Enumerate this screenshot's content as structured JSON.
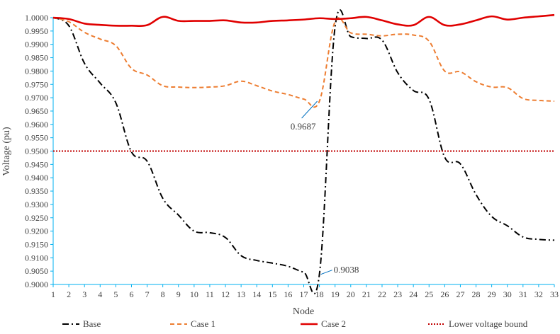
{
  "chart_data": {
    "type": "line",
    "xlabel": "Node",
    "ylabel": "Voltage (pu)",
    "x": [
      1,
      2,
      3,
      4,
      5,
      6,
      7,
      8,
      9,
      10,
      11,
      12,
      13,
      14,
      15,
      16,
      17,
      18,
      19,
      20,
      21,
      22,
      23,
      24,
      25,
      26,
      27,
      28,
      29,
      30,
      31,
      32,
      33
    ],
    "xlim": [
      1,
      33
    ],
    "ylim": [
      0.9,
      1.0
    ],
    "y_ticks": [
      "0.9000",
      "0.9050",
      "0.9100",
      "0.9150",
      "0.9200",
      "0.9250",
      "0.9300",
      "0.9350",
      "0.9400",
      "0.9450",
      "0.9500",
      "0.9550",
      "0.9600",
      "0.9650",
      "0.9700",
      "0.9750",
      "0.9800",
      "0.9850",
      "0.9900",
      "0.9950",
      "1.0000"
    ],
    "x_ticks": [
      "1",
      "2",
      "3",
      "4",
      "5",
      "6",
      "7",
      "8",
      "9",
      "10",
      "11",
      "12",
      "13",
      "14",
      "15",
      "16",
      "17",
      "18",
      "19",
      "20",
      "21",
      "22",
      "23",
      "24",
      "25",
      "26",
      "27",
      "28",
      "29",
      "30",
      "31",
      "32",
      "33"
    ],
    "grid": false,
    "legend_position": "bottom",
    "colors": {
      "axis": "#00b0f0",
      "base": "#000000",
      "case1": "#ed7d31",
      "case2": "#e00000",
      "bound": "#c00000",
      "callout": "#0070c0"
    },
    "series": [
      {
        "name": "Base",
        "style": "dash-dot",
        "color": "#000000",
        "values": [
          1.0,
          0.997,
          0.9829,
          0.9755,
          0.9681,
          0.9497,
          0.9462,
          0.9323,
          0.926,
          0.92,
          0.9194,
          0.9176,
          0.9108,
          0.909,
          0.908,
          0.9068,
          0.9046,
          0.9038,
          0.9965,
          0.9929,
          0.9922,
          0.9916,
          0.9794,
          0.9727,
          0.9694,
          0.9477,
          0.9452,
          0.9337,
          0.9255,
          0.922,
          0.9178,
          0.9169,
          0.9166
        ]
      },
      {
        "name": "Case 1",
        "style": "dashed",
        "color": "#ed7d31",
        "values": [
          1.0,
          0.9985,
          0.9945,
          0.992,
          0.9895,
          0.981,
          0.9785,
          0.9745,
          0.974,
          0.9738,
          0.974,
          0.9745,
          0.9762,
          0.9745,
          0.9725,
          0.9712,
          0.9695,
          0.9687,
          0.9985,
          0.9943,
          0.9938,
          0.9932,
          0.9938,
          0.9935,
          0.9912,
          0.98,
          0.9797,
          0.976,
          0.974,
          0.9738,
          0.9697,
          0.969,
          0.9687
        ]
      },
      {
        "name": "Case 2",
        "style": "solid",
        "color": "#e00000",
        "values": [
          1.0,
          0.9995,
          0.9978,
          0.9973,
          0.997,
          0.997,
          0.9972,
          1.0003,
          0.9988,
          0.9988,
          0.9988,
          0.999,
          0.9982,
          0.9982,
          0.9988,
          0.999,
          0.9993,
          0.9998,
          0.9995,
          0.9998,
          1.0003,
          0.999,
          0.9975,
          0.9972,
          1.0003,
          0.9972,
          0.9975,
          0.999,
          1.0005,
          0.9993,
          1.0,
          1.0005,
          1.001
        ]
      },
      {
        "name": "Lower voltage bound",
        "style": "dotted",
        "color": "#c00000",
        "values": [
          0.95,
          0.95,
          0.95,
          0.95,
          0.95,
          0.95,
          0.95,
          0.95,
          0.95,
          0.95,
          0.95,
          0.95,
          0.95,
          0.95,
          0.95,
          0.95,
          0.95,
          0.95,
          0.95,
          0.95,
          0.95,
          0.95,
          0.95,
          0.95,
          0.95,
          0.95,
          0.95,
          0.95,
          0.95,
          0.95,
          0.95,
          0.95,
          0.95
        ]
      }
    ],
    "annotations": [
      {
        "text": "0.9687",
        "series": "Case 1",
        "x": 18,
        "y": 0.9687
      },
      {
        "text": "0.9038",
        "series": "Base",
        "x": 18,
        "y": 0.9038
      }
    ]
  }
}
